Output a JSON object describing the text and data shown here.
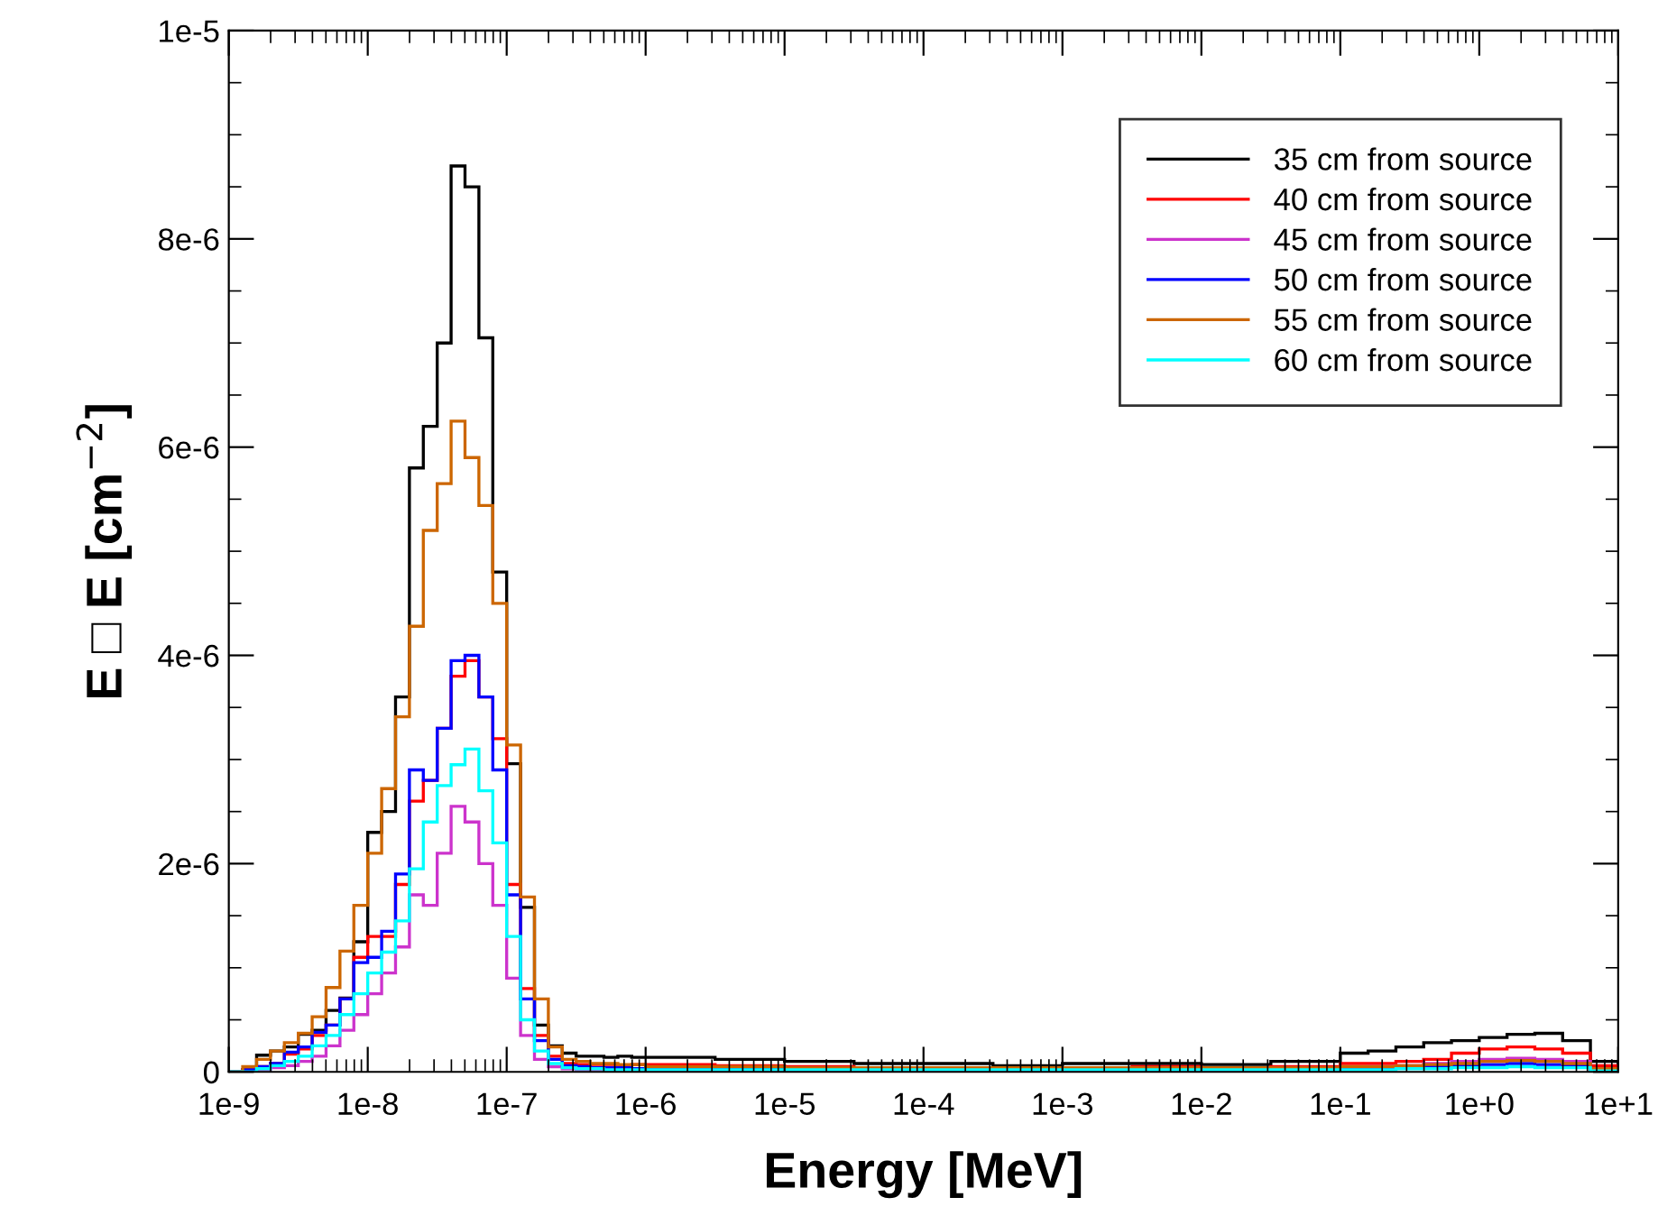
{
  "chart_data": {
    "type": "histogram",
    "xlabel": "Energy [MeV]",
    "ylabel": "E □ E [cm$^{−2}$]",
    "log": "x",
    "legend": "top right",
    "grid": false,
    "xlim": [
      1e-09,
      10
    ],
    "ylim": [
      0,
      1e-05
    ],
    "xticks": [
      {
        "value": 1e-09,
        "label": "1e-9"
      },
      {
        "value": 1e-08,
        "label": "1e-8"
      },
      {
        "value": 1e-07,
        "label": "1e-7"
      },
      {
        "value": 1e-06,
        "label": "1e-6"
      },
      {
        "value": 1e-05,
        "label": "1e-5"
      },
      {
        "value": 0.0001,
        "label": "1e-4"
      },
      {
        "value": 0.001,
        "label": "1e-3"
      },
      {
        "value": 0.01,
        "label": "1e-2"
      },
      {
        "value": 0.1,
        "label": "1e-1"
      },
      {
        "value": 1,
        "label": "1e+0"
      },
      {
        "value": 10,
        "label": "1e+1"
      }
    ],
    "yticks": [
      0,
      {
        "value": 2e-06,
        "label": "2e-6"
      },
      {
        "value": 4e-06,
        "label": "4e-6"
      },
      {
        "value": 6e-06,
        "label": "6e-6"
      },
      {
        "value": 8e-06,
        "label": "8e-6"
      },
      {
        "value": 1e-05,
        "label": "1e-5"
      }
    ],
    "bins": [
      1e-09,
      1.259e-09,
      1.585e-09,
      1.995e-09,
      2.512e-09,
      3.162e-09,
      3.981e-09,
      5.012e-09,
      6.31e-09,
      7.943e-09,
      1e-08,
      1.259e-08,
      1.585e-08,
      1.995e-08,
      2.512e-08,
      3.162e-08,
      3.981e-08,
      5.012e-08,
      6.31e-08,
      7.943e-08,
      1e-07,
      1.259e-07,
      1.585e-07,
      1.995e-07,
      2.512e-07,
      3.162e-07,
      3.981e-07,
      5.012e-07,
      6.31e-07,
      7.943e-07,
      1e-06,
      3.162e-06,
      1e-05,
      3.162e-05,
      0.0001,
      0.0003162,
      0.001,
      0.003162,
      0.01,
      0.03162,
      0.1,
      0.1585,
      0.2512,
      0.3981,
      0.631,
      1,
      1.585,
      2.512,
      3.981,
      6.31,
      10
    ],
    "series": [
      {
        "name": "35 cm from source",
        "color": "#000000",
        "values": [
          0,
          2e-08,
          1.6e-07,
          2e-07,
          2.4e-07,
          3.6e-07,
          4e-07,
          5.9e-07,
          7.1e-07,
          1.25e-06,
          2.3e-06,
          2.5e-06,
          3.6e-06,
          5.8e-06,
          6.2e-06,
          7e-06,
          8.7e-06,
          8.5e-06,
          7.05e-06,
          4.8e-06,
          2.96e-06,
          1.58e-06,
          4.5e-07,
          2.5e-07,
          1.8e-07,
          1.5e-07,
          1.5e-07,
          1.4e-07,
          1.5e-07,
          1.4e-07,
          1.4e-07,
          1.2e-07,
          1e-07,
          8e-08,
          8e-08,
          6e-08,
          8e-08,
          8e-08,
          7e-08,
          1e-07,
          1.8e-07,
          2e-07,
          2.4e-07,
          2.8e-07,
          3e-07,
          3.3e-07,
          3.6e-07,
          3.7e-07,
          3e-07,
          1e-07
        ]
      },
      {
        "name": "40 cm from source",
        "color": "#ff0000",
        "values": [
          0,
          2e-08,
          5e-08,
          8e-08,
          1.7e-07,
          2.2e-07,
          3.5e-07,
          4.5e-07,
          7e-07,
          1.1e-06,
          1.3e-06,
          1.3e-06,
          1.8e-06,
          2.6e-06,
          2.8e-06,
          3.3e-06,
          3.8e-06,
          3.95e-06,
          3.6e-06,
          3.2e-06,
          1.8e-06,
          8e-07,
          3.5e-07,
          1.5e-07,
          8e-08,
          7e-08,
          7e-08,
          7e-08,
          6e-08,
          7e-08,
          7e-08,
          6e-08,
          5e-08,
          4e-08,
          4e-08,
          3e-08,
          3e-08,
          5e-08,
          4e-08,
          5e-08,
          8e-08,
          8e-08,
          1e-07,
          1.2e-07,
          1.8e-07,
          2.2e-07,
          2.4e-07,
          2.2e-07,
          1.8e-07,
          6e-08
        ]
      },
      {
        "name": "45 cm from source",
        "color": "#cc33cc",
        "values": [
          0,
          0,
          2e-08,
          4e-08,
          6e-08,
          1e-07,
          1.5e-07,
          2.5e-07,
          4e-07,
          5.5e-07,
          7.5e-07,
          9.5e-07,
          1.2e-06,
          1.7e-06,
          1.6e-06,
          2.1e-06,
          2.55e-06,
          2.4e-06,
          2e-06,
          1.6e-06,
          9e-07,
          3.5e-07,
          1.2e-07,
          5e-08,
          3e-08,
          2e-08,
          2e-08,
          2e-08,
          2e-08,
          2e-08,
          2e-08,
          2e-08,
          2e-08,
          2e-08,
          2e-08,
          2e-08,
          2e-08,
          2e-08,
          2e-08,
          2e-08,
          4e-08,
          5e-08,
          6e-08,
          8e-08,
          1e-07,
          1.2e-07,
          1.3e-07,
          1.2e-07,
          1e-07,
          3e-08
        ]
      },
      {
        "name": "50 cm from source",
        "color": "#0000ff",
        "values": [
          0,
          2e-08,
          5e-08,
          8e-08,
          1.9e-07,
          2.4e-07,
          3.8e-07,
          4.5e-07,
          7e-07,
          1.05e-06,
          1.1e-06,
          1.35e-06,
          1.9e-06,
          2.9e-06,
          2.8e-06,
          3.3e-06,
          3.95e-06,
          4e-06,
          3.6e-06,
          2.9e-06,
          1.7e-06,
          7e-07,
          3e-07,
          1.2e-07,
          6e-08,
          5e-08,
          4e-08,
          4e-08,
          4e-08,
          3e-08,
          3e-08,
          3e-08,
          3e-08,
          3e-08,
          3e-08,
          3e-08,
          3e-08,
          3e-08,
          3e-08,
          3e-08,
          3e-08,
          3e-08,
          4e-08,
          5e-08,
          6e-08,
          7e-08,
          8e-08,
          7e-08,
          6e-08,
          2e-08
        ]
      },
      {
        "name": "55 cm from source",
        "color": "#cc6600",
        "values": [
          0,
          5e-08,
          1.2e-07,
          2e-07,
          2.8e-07,
          3.7e-07,
          5.3e-07,
          8.1e-07,
          1.16e-06,
          1.6e-06,
          2.1e-06,
          2.72e-06,
          3.41e-06,
          4.28e-06,
          5.2e-06,
          5.65e-06,
          6.25e-06,
          5.9e-06,
          5.44e-06,
          4.5e-06,
          3.14e-06,
          1.68e-06,
          7e-07,
          2.4e-07,
          1.2e-07,
          1e-07,
          8e-08,
          8e-08,
          7e-08,
          7e-08,
          5e-08,
          5e-08,
          4e-08,
          4e-08,
          4e-08,
          4e-08,
          4e-08,
          4e-08,
          4e-08,
          4e-08,
          5e-08,
          5e-08,
          6e-08,
          7e-08,
          8e-08,
          1e-07,
          1.1e-07,
          1e-07,
          8e-08,
          3e-08
        ]
      },
      {
        "name": "60 cm from source",
        "color": "#00ffff",
        "values": [
          0,
          0,
          3e-08,
          6e-08,
          1e-07,
          1.5e-07,
          2.5e-07,
          3.5e-07,
          5.5e-07,
          7.5e-07,
          9.5e-07,
          1.15e-06,
          1.45e-06,
          1.95e-06,
          2.4e-06,
          2.75e-06,
          2.95e-06,
          3.1e-06,
          2.7e-06,
          2.2e-06,
          1.3e-06,
          5e-07,
          2e-07,
          8e-08,
          4e-08,
          3e-08,
          3e-08,
          2e-08,
          2e-08,
          2e-08,
          2e-08,
          2e-08,
          2e-08,
          2e-08,
          2e-08,
          2e-08,
          2e-08,
          2e-08,
          2e-08,
          2e-08,
          2e-08,
          2e-08,
          3e-08,
          3e-08,
          4e-08,
          4e-08,
          5e-08,
          4e-08,
          4e-08,
          1e-08
        ]
      }
    ]
  }
}
